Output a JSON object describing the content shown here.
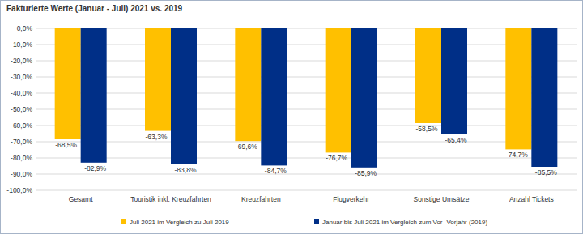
{
  "chart_data": {
    "type": "bar",
    "title": "Fakturierte Werte (Januar - Juli) 2021 vs. 2019",
    "categories": [
      "Gesamt",
      "Touristik inkl. Kreuzfahrten",
      "Kreuzfahrten",
      "Flugverkehr",
      "Sonstige Umsätze",
      "Anzahl Tickets"
    ],
    "series": [
      {
        "name": "Juli 2021 im Vergleich zu Juli 2019",
        "color": "#ffc000",
        "values": [
          -68.5,
          -63.3,
          -69.6,
          -76.7,
          -58.5,
          -74.7
        ],
        "value_labels": [
          "-68,5%",
          "-63,3%",
          "-69,6%",
          "-76,7%",
          "-58,5%",
          "-74,7%"
        ]
      },
      {
        "name": "Januar bis Juli 2021 im Vergleich zum Vor- Vorjahr (2019)",
        "color": "#002f87",
        "values": [
          -82.9,
          -83.8,
          -84.7,
          -85.9,
          -65.4,
          -85.5
        ],
        "value_labels": [
          "-82,9%",
          "-83,8%",
          "-84,7%",
          "-85,9%",
          "-65,4%",
          "-85,5%"
        ]
      }
    ],
    "ylim": [
      -100,
      0
    ],
    "yticks": [
      {
        "value": 0,
        "label": "0,0%"
      },
      {
        "value": -10,
        "label": "-10,0%"
      },
      {
        "value": -20,
        "label": "-20,0%"
      },
      {
        "value": -30,
        "label": "-30,0%"
      },
      {
        "value": -40,
        "label": "-40,0%"
      },
      {
        "value": -50,
        "label": "-50,0%"
      },
      {
        "value": -60,
        "label": "-60,0%"
      },
      {
        "value": -70,
        "label": "-70,0%"
      },
      {
        "value": -80,
        "label": "-80,0%"
      },
      {
        "value": -90,
        "label": "-90,0%"
      },
      {
        "value": -100,
        "label": "-100,0%"
      }
    ],
    "grid": true,
    "data_labels": true,
    "legend": "bottom"
  }
}
